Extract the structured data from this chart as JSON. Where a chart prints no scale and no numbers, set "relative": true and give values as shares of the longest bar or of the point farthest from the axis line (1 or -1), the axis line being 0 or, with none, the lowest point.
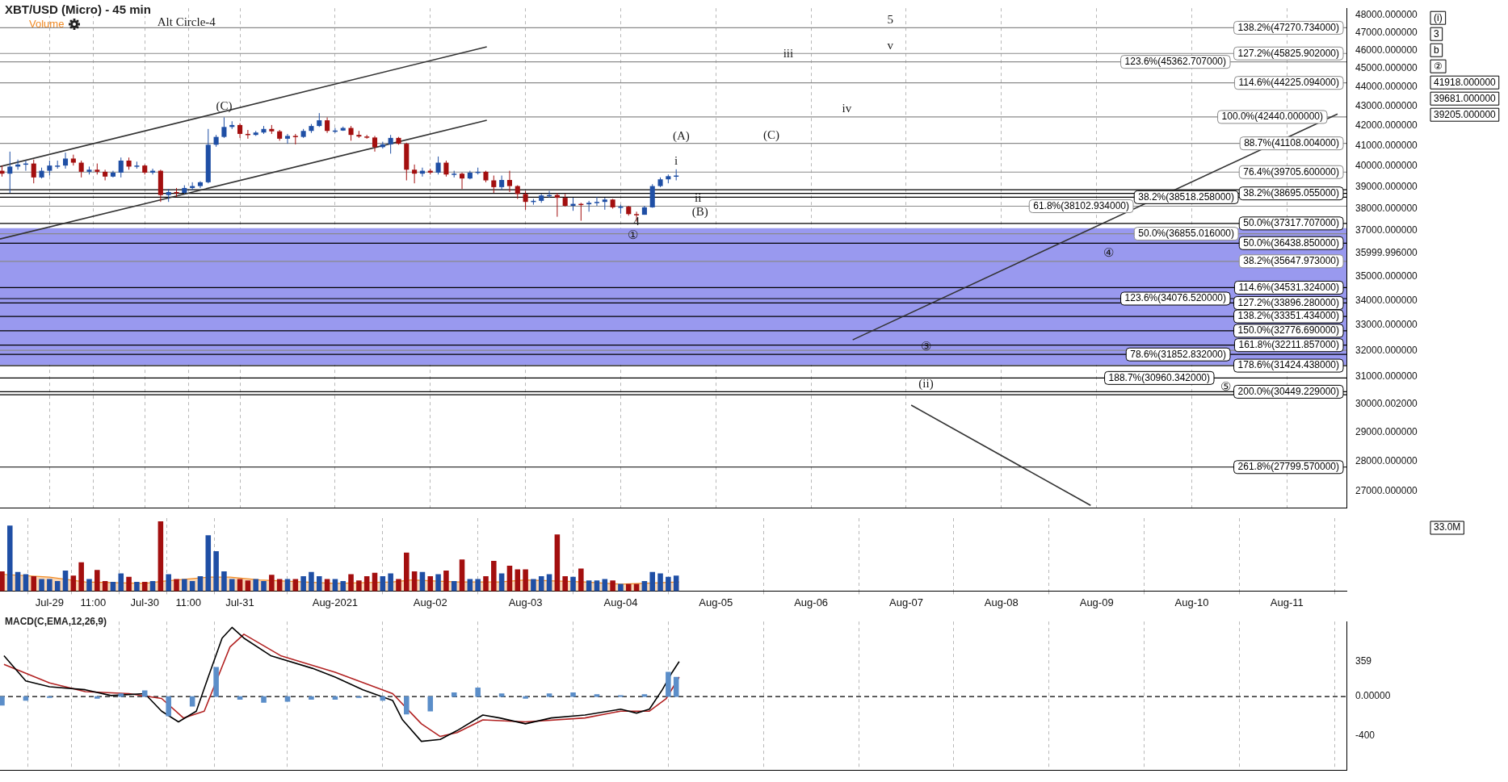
{
  "chart_data": [
    {
      "type": "candlestick",
      "title": "XBT/USD (Micro) - 45 min",
      "log": "y",
      "grid": "x",
      "tick_labels": "y",
      "xlim": [
        "2021-07-28T11:30",
        "2021-08-11T15:00"
      ],
      "xticks": [
        {
          "value": "2021-07-29",
          "label": null
        },
        {
          "value": "2021-07-29T11:00",
          "label": null
        },
        {
          "value": "2021-07-30",
          "label": null
        },
        {
          "value": "2021-07-30T11:00",
          "label": null
        },
        {
          "value": "2021-07-31",
          "label": null
        },
        {
          "value": "2021-08-01",
          "label": null
        },
        {
          "value": "2021-08-02",
          "label": null
        },
        {
          "value": "2021-08-03",
          "label": null
        },
        {
          "value": "2021-08-04",
          "label": null
        },
        {
          "value": "2021-08-05",
          "label": null
        },
        {
          "value": "2021-08-06",
          "label": null
        },
        {
          "value": "2021-08-07",
          "label": null
        },
        {
          "value": "2021-08-08",
          "label": null
        },
        {
          "value": "2021-08-09",
          "label": null
        },
        {
          "value": "2021-08-10",
          "label": null
        },
        {
          "value": "2021-08-11",
          "label": null
        }
      ],
      "ylim": [
        26450,
        48400
      ],
      "yticks": [
        {
          "value": 27000,
          "label": "27000.000000"
        },
        {
          "value": 28000,
          "label": "28000.000000"
        },
        {
          "value": 29000,
          "label": "29000.000000"
        },
        {
          "value": 30000.002,
          "label": "30000.002000"
        },
        {
          "value": 31000,
          "label": "31000.000000"
        },
        {
          "value": 32000,
          "label": "32000.000000"
        },
        {
          "value": 33000,
          "label": "33000.000000"
        },
        {
          "value": 34000,
          "label": "34000.000000"
        },
        {
          "value": 35000,
          "label": "35000.000000"
        },
        {
          "value": 35999.996,
          "label": "35999.996000"
        },
        {
          "value": 37000,
          "label": "37000.000000"
        },
        {
          "value": 38000,
          "label": "38000.000000"
        },
        {
          "value": 39000,
          "label": "39000.000000"
        },
        {
          "value": 40000,
          "label": "40000.000000"
        },
        {
          "value": 41000,
          "label": "41000.000000"
        },
        {
          "value": 42000,
          "label": "42000.000000"
        },
        {
          "value": 43000,
          "label": "43000.000000"
        },
        {
          "value": 44000,
          "label": "44000.000000"
        },
        {
          "value": 45000,
          "label": "45000.000000"
        },
        {
          "value": 46000,
          "label": "46000.000000"
        },
        {
          "value": 47000,
          "label": "47000.000000"
        },
        {
          "value": 48000,
          "label": "48000.000000"
        }
      ],
      "x": [
        "2021-07-28T12:00",
        "2021-07-28T14:00",
        "2021-07-28T16:00",
        "2021-07-28T18:00",
        "2021-07-28T20:00",
        "2021-07-28T22:00",
        "2021-07-29T00:00",
        "2021-07-29T02:00",
        "2021-07-29T04:00",
        "2021-07-29T06:00",
        "2021-07-29T08:00",
        "2021-07-29T10:00",
        "2021-07-29T12:00",
        "2021-07-29T14:00",
        "2021-07-29T16:00",
        "2021-07-29T18:00",
        "2021-07-29T20:00",
        "2021-07-29T22:00",
        "2021-07-30T00:00",
        "2021-07-30T02:00",
        "2021-07-30T04:00",
        "2021-07-30T06:00",
        "2021-07-30T08:00",
        "2021-07-30T10:00",
        "2021-07-30T12:00",
        "2021-07-30T14:00",
        "2021-07-30T16:00",
        "2021-07-30T18:00",
        "2021-07-30T20:00",
        "2021-07-30T22:00",
        "2021-07-31T00:00",
        "2021-07-31T02:00",
        "2021-07-31T04:00",
        "2021-07-31T06:00",
        "2021-07-31T08:00",
        "2021-07-31T10:00",
        "2021-07-31T12:00",
        "2021-07-31T14:00",
        "2021-07-31T16:00",
        "2021-07-31T18:00",
        "2021-07-31T20:00",
        "2021-07-31T22:00",
        "2021-08-01T00:00",
        "2021-08-01T02:00",
        "2021-08-01T04:00",
        "2021-08-01T06:00",
        "2021-08-01T08:00",
        "2021-08-01T10:00",
        "2021-08-01T12:00",
        "2021-08-01T14:00",
        "2021-08-01T16:00",
        "2021-08-01T18:00",
        "2021-08-01T20:00",
        "2021-08-01T22:00",
        "2021-08-02T00:00",
        "2021-08-02T02:00",
        "2021-08-02T04:00",
        "2021-08-02T06:00",
        "2021-08-02T08:00",
        "2021-08-02T10:00",
        "2021-08-02T12:00",
        "2021-08-02T14:00",
        "2021-08-02T16:00",
        "2021-08-02T18:00",
        "2021-08-02T20:00",
        "2021-08-02T22:00",
        "2021-08-03T00:00",
        "2021-08-03T02:00",
        "2021-08-03T04:00",
        "2021-08-03T06:00",
        "2021-08-03T08:00",
        "2021-08-03T10:00",
        "2021-08-03T12:00",
        "2021-08-03T14:00",
        "2021-08-03T16:00",
        "2021-08-03T18:00",
        "2021-08-03T20:00",
        "2021-08-03T22:00",
        "2021-08-04T00:00",
        "2021-08-04T02:00",
        "2021-08-04T04:00",
        "2021-08-04T06:00",
        "2021-08-04T08:00",
        "2021-08-04T10:00",
        "2021-08-04T12:00",
        "2021-08-04T14:00"
      ],
      "ohlc": [
        [
          39770,
          40020,
          39490,
          39630
        ],
        [
          39630,
          40700,
          38720,
          39970
        ],
        [
          39970,
          40310,
          39820,
          40070
        ],
        [
          40070,
          40260,
          39770,
          40120
        ],
        [
          40120,
          40310,
          39170,
          39450
        ],
        [
          39450,
          39920,
          39400,
          39770
        ],
        [
          39770,
          40260,
          39540,
          40020
        ],
        [
          40020,
          40260,
          39870,
          40020
        ],
        [
          40020,
          40650,
          39870,
          40360
        ],
        [
          40360,
          40550,
          40020,
          40160
        ],
        [
          40160,
          40260,
          39450,
          39720
        ],
        [
          39720,
          39970,
          39590,
          39820
        ],
        [
          39820,
          40120,
          39590,
          39720
        ],
        [
          39720,
          39820,
          39310,
          39490
        ],
        [
          39490,
          39770,
          39450,
          39680
        ],
        [
          39680,
          40410,
          39450,
          40260
        ],
        [
          40260,
          40410,
          39820,
          39970
        ],
        [
          39970,
          40210,
          39870,
          40020
        ],
        [
          40020,
          40070,
          39590,
          39680
        ],
        [
          39680,
          39870,
          39590,
          39770
        ],
        [
          39770,
          39820,
          38300,
          38620
        ],
        [
          38620,
          38900,
          38300,
          38760
        ],
        [
          38760,
          38950,
          38530,
          38720
        ],
        [
          38720,
          39080,
          38670,
          38950
        ],
        [
          38950,
          39220,
          38850,
          39040
        ],
        [
          39040,
          39270,
          38950,
          39220
        ],
        [
          39220,
          41830,
          39170,
          41040
        ],
        [
          41040,
          41530,
          40940,
          41430
        ],
        [
          41430,
          42420,
          41380,
          41930
        ],
        [
          41930,
          42220,
          41830,
          42030
        ],
        [
          42030,
          42120,
          41380,
          41580
        ],
        [
          41580,
          41780,
          41340,
          41530
        ],
        [
          41530,
          41730,
          41480,
          41650
        ],
        [
          41650,
          41980,
          41580,
          41830
        ],
        [
          41830,
          42030,
          41580,
          41710
        ],
        [
          41710,
          41780,
          41240,
          41340
        ],
        [
          41340,
          41580,
          41090,
          41480
        ],
        [
          41480,
          41580,
          41060,
          41430
        ],
        [
          41430,
          41830,
          41380,
          41730
        ],
        [
          41730,
          42080,
          41630,
          41980
        ],
        [
          41980,
          42640,
          41930,
          42270
        ],
        [
          42270,
          42420,
          41630,
          41730
        ],
        [
          41730,
          41880,
          41630,
          41750
        ],
        [
          41750,
          41950,
          41730,
          41880
        ],
        [
          41880,
          41980,
          41240,
          41530
        ],
        [
          41530,
          41730,
          41380,
          41450
        ],
        [
          41450,
          41530,
          41340,
          41400
        ],
        [
          41400,
          41480,
          40700,
          40920
        ],
        [
          40920,
          41190,
          40850,
          41060
        ],
        [
          41060,
          41530,
          40600,
          41380
        ],
        [
          41380,
          41430,
          41040,
          41090
        ],
        [
          41090,
          41140,
          39310,
          39820
        ],
        [
          39820,
          40070,
          39170,
          39630
        ],
        [
          39630,
          39920,
          39490,
          39770
        ],
        [
          39770,
          39870,
          39590,
          39680
        ],
        [
          39680,
          40460,
          39590,
          40160
        ],
        [
          40160,
          40260,
          39490,
          39590
        ],
        [
          39590,
          39770,
          39450,
          39630
        ],
        [
          39630,
          39680,
          38900,
          39400
        ],
        [
          39400,
          39770,
          39360,
          39680
        ],
        [
          39680,
          39920,
          39590,
          39720
        ],
        [
          39720,
          39770,
          39220,
          39310
        ],
        [
          39310,
          39540,
          38720,
          38990
        ],
        [
          38990,
          39540,
          38850,
          39330
        ],
        [
          39330,
          39770,
          38760,
          39040
        ],
        [
          39040,
          39080,
          38440,
          38670
        ],
        [
          38670,
          38810,
          37940,
          38300
        ],
        [
          38300,
          38440,
          38170,
          38350
        ],
        [
          38350,
          38670,
          38260,
          38600
        ],
        [
          38600,
          38810,
          38490,
          38620
        ],
        [
          38620,
          38720,
          37620,
          38490
        ],
        [
          38490,
          38670,
          38080,
          38120
        ],
        [
          38120,
          38490,
          37890,
          38210
        ],
        [
          38210,
          38260,
          37440,
          38190
        ],
        [
          38190,
          38350,
          37850,
          38260
        ],
        [
          38260,
          38530,
          38120,
          38300
        ],
        [
          38300,
          38490,
          37940,
          38410
        ],
        [
          38410,
          38440,
          37990,
          38050
        ],
        [
          38050,
          38170,
          37760,
          38080
        ],
        [
          38080,
          38120,
          37670,
          37740
        ],
        [
          37740,
          37850,
          37400,
          37710
        ],
        [
          37710,
          38120,
          37710,
          38050
        ],
        [
          38050,
          39130,
          38030,
          39040
        ],
        [
          39040,
          39450,
          38990,
          39360
        ],
        [
          39360,
          39590,
          39170,
          39510
        ],
        [
          39510,
          39840,
          39310,
          39540
        ]
      ],
      "colors": [
        "#a30f0f",
        "#1f4fa5",
        "#1f4fa5",
        "#1f4fa5",
        "#a30f0f",
        "#1f4fa5",
        "#1f4fa5",
        "#1f4fa5",
        "#1f4fa5",
        "#a30f0f",
        "#a30f0f",
        "#1f4fa5",
        "#a30f0f",
        "#a30f0f",
        "#1f4fa5",
        "#1f4fa5",
        "#a30f0f",
        "#1f4fa5",
        "#a30f0f",
        "#1f4fa5",
        "#a30f0f",
        "#1f4fa5",
        "#a30f0f",
        "#1f4fa5",
        "#1f4fa5",
        "#1f4fa5",
        "#1f4fa5",
        "#1f4fa5",
        "#1f4fa5",
        "#1f4fa5",
        "#a30f0f",
        "#a30f0f",
        "#1f4fa5",
        "#1f4fa5",
        "#a30f0f",
        "#a30f0f",
        "#1f4fa5",
        "#a30f0f",
        "#1f4fa5",
        "#1f4fa5",
        "#1f4fa5",
        "#a30f0f",
        "#1f4fa5",
        "#1f4fa5",
        "#a30f0f",
        "#a30f0f",
        "#a30f0f",
        "#a30f0f",
        "#1f4fa5",
        "#1f4fa5",
        "#a30f0f",
        "#a30f0f",
        "#a30f0f",
        "#1f4fa5",
        "#a30f0f",
        "#1f4fa5",
        "#a30f0f",
        "#1f4fa5",
        "#a30f0f",
        "#1f4fa5",
        "#1f4fa5",
        "#a30f0f",
        "#a30f0f",
        "#1f4fa5",
        "#a30f0f",
        "#a30f0f",
        "#a30f0f",
        "#1f4fa5",
        "#1f4fa5",
        "#1f4fa5",
        "#a30f0f",
        "#a30f0f",
        "#1f4fa5",
        "#a30f0f",
        "#1f4fa5",
        "#1f4fa5",
        "#1f4fa5",
        "#a30f0f",
        "#1f4fa5",
        "#a30f0f",
        "#a30f0f",
        "#1f4fa5",
        "#1f4fa5",
        "#1f4fa5",
        "#1f4fa5",
        "#1f4fa5"
      ],
      "series": [
        {
          "type": "line",
          "color": "#333333",
          "x": [
            "2021-07-28T11:30",
            "2021-08-02T14:15"
          ],
          "values": [
            39970,
            46200
          ]
        },
        {
          "type": "line",
          "color": "#333333",
          "x": [
            "2021-07-28T11:30",
            "2021-08-02T14:15"
          ],
          "values": [
            36620,
            42270
          ]
        },
        {
          "type": "line",
          "color": "#333333",
          "x": [
            "2021-08-06T10:30",
            "2021-08-11T12:45"
          ],
          "values": [
            32420,
            42590
          ]
        },
        {
          "type": "line",
          "color": "#333333",
          "x": [
            "2021-08-07T01:15",
            "2021-08-08T22:30"
          ],
          "values": [
            29960,
            26540
          ]
        }
      ],
      "bands": [
        {
          "axis": "y",
          "from": 31450,
          "to": 37100,
          "color": "#9999ef"
        }
      ],
      "ref_lines": [
        {
          "axis": "y",
          "value": 47270.734,
          "label": "138.2%(47270.734000)",
          "color": "#8a8a8a"
        },
        {
          "axis": "y",
          "value": 45825.902,
          "label": "127.2%(45825.902000)",
          "color": "#8a8a8a"
        },
        {
          "axis": "y",
          "value": 45362.707,
          "label": "123.6%(45362.707000)",
          "color": "#8a8a8a"
        },
        {
          "axis": "y",
          "value": 44225.094,
          "label": "114.6%(44225.094000)",
          "color": "#8a8a8a"
        },
        {
          "axis": "y",
          "value": 42440,
          "label": "100.0%(42440.000000)",
          "color": "#8a8a8a"
        },
        {
          "axis": "y",
          "value": 41108.004,
          "label": "88.7%(41108.004000)",
          "color": "#8a8a8a"
        },
        {
          "axis": "y",
          "value": 39705.6,
          "label": "76.4%(39705.600000)",
          "color": "#8a8a8a"
        },
        {
          "axis": "y",
          "value": 38870,
          "color": "#000000"
        },
        {
          "axis": "y",
          "value": 38695.055,
          "label": "38.2%(38695.055000)",
          "color": "#000000"
        },
        {
          "axis": "y",
          "value": 38518.258,
          "label": "38.2%(38518.258000)",
          "color": "#000000"
        },
        {
          "axis": "y",
          "value": 38102.934,
          "label": "61.8%(38102.934000)",
          "color": "#8a8a8a"
        },
        {
          "axis": "y",
          "value": 37317.707,
          "label": "50.0%(37317.707000)",
          "color": "#000000"
        },
        {
          "axis": "y",
          "value": 36855.016,
          "label": "50.0%(36855.016000)",
          "color": "#8a8a8a"
        },
        {
          "axis": "y",
          "value": 36438.85,
          "label": "50.0%(36438.850000)",
          "color": "#000000"
        },
        {
          "axis": "y",
          "value": 35647.973,
          "label": "38.2%(35647.973000)",
          "color": "#8a8a8a"
        },
        {
          "axis": "y",
          "value": 34531.324,
          "label": "114.6%(34531.324000)",
          "color": "#000000"
        },
        {
          "axis": "y",
          "value": 34076.52,
          "label": "123.6%(34076.520000)",
          "color": "#000000"
        },
        {
          "axis": "y",
          "value": 33896.28,
          "label": "127.2%(33896.280000)",
          "color": "#000000"
        },
        {
          "axis": "y",
          "value": 33351.434,
          "label": "138.2%(33351.434000)",
          "color": "#000000"
        },
        {
          "axis": "y",
          "value": 32776.69,
          "label": "150.0%(32776.690000)",
          "color": "#000000"
        },
        {
          "axis": "y",
          "value": 32211.857,
          "label": "161.8%(32211.857000)",
          "color": "#000000"
        },
        {
          "axis": "y",
          "value": 32010,
          "color": "#8a8a8a"
        },
        {
          "axis": "y",
          "value": 31852.832,
          "label": "78.6%(31852.832000)",
          "color": "#000000"
        },
        {
          "axis": "y",
          "value": 31424.438,
          "label": "178.6%(31424.438000)",
          "color": "#000000"
        },
        {
          "axis": "y",
          "value": 30960.342,
          "label": "188.7%(30960.342000)",
          "color": "#000000"
        },
        {
          "axis": "y",
          "value": 30449.229,
          "label": "200.0%(30449.229000)",
          "color": "#000000"
        },
        {
          "axis": "y",
          "value": 30340,
          "color": "#000000"
        },
        {
          "axis": "y",
          "value": 27799.57,
          "label": "261.8%(27799.570000)",
          "color": "#000000"
        }
      ],
      "annotations": [
        {
          "text": "Alt Circle-4",
          "x": "2021-07-30T10:30",
          "y": 47110
        },
        "(i)",
        "3",
        "b",
        {
          "text": "(C)",
          "x": "2021-07-30T20:00",
          "y": 42560
        },
        {
          "text": "5",
          "x": "2021-08-06T20:00",
          "y": 47270.734
        },
        {
          "text": "v",
          "x": "2021-08-06T20:00",
          "y": 45825.902
        },
        {
          "text": "iii",
          "x": "2021-08-05T18:15",
          "y": 45362.707
        },
        {
          "text": "iv",
          "x": "2021-08-06T09:00",
          "y": 42440
        },
        "②",
        {
          "text": "(C)",
          "x": "2021-08-05T14:00",
          "y": 41108.004
        },
        {
          "text": "(A)",
          "x": "2021-08-04T15:15",
          "y": 41070
        },
        {
          "text": "i",
          "x": "2021-08-04T14:00",
          "y": 39840
        },
        {
          "text": "ii",
          "x": "2021-08-04T19:30",
          "y": 38102.934
        },
        {
          "text": "(B)",
          "x": "2021-08-04T20:00",
          "y": 37480
        },
        {
          "text": "4",
          "x": "2021-08-04T04:00",
          "y": 37030
        },
        {
          "text": "①",
          "x": "2021-08-04T03:00",
          "y": 36438.85
        },
        {
          "text": "④",
          "x": "2021-08-09T03:00",
          "y": 35647.973
        },
        {
          "text": "③",
          "x": "2021-08-07T05:00",
          "y": 31852.832
        },
        {
          "text": "(ii)",
          "x": "2021-08-07T05:00",
          "y": 30449.229
        },
        {
          "text": "⑤",
          "x": "2021-08-10T08:30",
          "y": 30340
        },
        "41918.000000",
        "39681.000000",
        "39205.000000"
      ]
    },
    {
      "type": "bar",
      "title": "Volume",
      "relative": true,
      "grid": "x",
      "tick_labels": "x",
      "xlim": [
        "2021-07-28T11:30",
        "2021-08-11T15:00"
      ],
      "xticks": [
        {
          "value": "2021-07-29",
          "label": "Jul-29"
        },
        {
          "value": "2021-07-29T11:00",
          "label": "11:00"
        },
        {
          "value": "2021-07-30",
          "label": "Jul-30"
        },
        {
          "value": "2021-07-30T11:00",
          "label": "11:00"
        },
        {
          "value": "2021-07-31",
          "label": "Jul-31"
        },
        {
          "value": "2021-08-01",
          "label": "Aug-2021"
        },
        {
          "value": "2021-08-02",
          "label": "Aug-02"
        },
        {
          "value": "2021-08-03",
          "label": "Aug-03"
        },
        {
          "value": "2021-08-04",
          "label": "Aug-04"
        },
        {
          "value": "2021-08-05",
          "label": "Aug-05"
        },
        {
          "value": "2021-08-06",
          "label": "Aug-06"
        },
        {
          "value": "2021-08-07",
          "label": "Aug-07"
        },
        {
          "value": "2021-08-08",
          "label": "Aug-08"
        },
        {
          "value": "2021-08-09",
          "label": "Aug-09"
        },
        {
          "value": "2021-08-10",
          "label": "Aug-10"
        },
        {
          "value": "2021-08-11",
          "label": "Aug-11"
        }
      ],
      "series": [
        {
          "x": [
            "2021-07-28T12:00",
            "2021-07-28T14:00",
            "2021-07-28T16:00",
            "2021-07-28T18:00",
            "2021-07-28T20:00",
            "2021-07-28T22:00",
            "2021-07-29T00:00",
            "2021-07-29T02:00",
            "2021-07-29T04:00",
            "2021-07-29T06:00",
            "2021-07-29T08:00",
            "2021-07-29T10:00",
            "2021-07-29T12:00",
            "2021-07-29T14:00",
            "2021-07-29T16:00",
            "2021-07-29T18:00",
            "2021-07-29T20:00",
            "2021-07-29T22:00",
            "2021-07-30T00:00",
            "2021-07-30T02:00",
            "2021-07-30T04:00",
            "2021-07-30T06:00",
            "2021-07-30T08:00",
            "2021-07-30T10:00",
            "2021-07-30T12:00",
            "2021-07-30T14:00",
            "2021-07-30T16:00",
            "2021-07-30T18:00",
            "2021-07-30T20:00",
            "2021-07-30T22:00",
            "2021-07-31T00:00",
            "2021-07-31T02:00",
            "2021-07-31T04:00",
            "2021-07-31T06:00",
            "2021-07-31T08:00",
            "2021-07-31T10:00",
            "2021-07-31T12:00",
            "2021-07-31T14:00",
            "2021-07-31T16:00",
            "2021-07-31T18:00",
            "2021-07-31T20:00",
            "2021-07-31T22:00",
            "2021-08-01T00:00",
            "2021-08-01T02:00",
            "2021-08-01T04:00",
            "2021-08-01T06:00",
            "2021-08-01T08:00",
            "2021-08-01T10:00",
            "2021-08-01T12:00",
            "2021-08-01T14:00",
            "2021-08-01T16:00",
            "2021-08-01T18:00",
            "2021-08-01T20:00",
            "2021-08-01T22:00",
            "2021-08-02T00:00",
            "2021-08-02T02:00",
            "2021-08-02T04:00",
            "2021-08-02T06:00",
            "2021-08-02T08:00",
            "2021-08-02T10:00",
            "2021-08-02T12:00",
            "2021-08-02T14:00",
            "2021-08-02T16:00",
            "2021-08-02T18:00",
            "2021-08-02T20:00",
            "2021-08-02T22:00",
            "2021-08-03T00:00",
            "2021-08-03T02:00",
            "2021-08-03T04:00",
            "2021-08-03T06:00",
            "2021-08-03T08:00",
            "2021-08-03T10:00",
            "2021-08-03T12:00",
            "2021-08-03T14:00",
            "2021-08-03T16:00",
            "2021-08-03T18:00",
            "2021-08-03T20:00",
            "2021-08-03T22:00",
            "2021-08-04T00:00",
            "2021-08-04T02:00",
            "2021-08-04T04:00",
            "2021-08-04T06:00",
            "2021-08-04T08:00",
            "2021-08-04T10:00",
            "2021-08-04T12:00",
            "2021-08-04T14:00"
          ],
          "values": [
            0.28,
            0.94,
            0.27,
            0.24,
            0.21,
            0.17,
            0.17,
            0.14,
            0.29,
            0.22,
            0.41,
            0.17,
            0.3,
            0.14,
            0.13,
            0.25,
            0.2,
            0.13,
            0.13,
            0.14,
            1,
            0.24,
            0.17,
            0.17,
            0.14,
            0.21,
            0.8,
            0.57,
            0.28,
            0.17,
            0.17,
            0.15,
            0.17,
            0.14,
            0.23,
            0.17,
            0.17,
            0.17,
            0.21,
            0.27,
            0.21,
            0.17,
            0.17,
            0.14,
            0.24,
            0.15,
            0.21,
            0.26,
            0.21,
            0.25,
            0.17,
            0.55,
            0.28,
            0.27,
            0.21,
            0.24,
            0.29,
            0.14,
            0.45,
            0.17,
            0.17,
            0.21,
            0.43,
            0.25,
            0.36,
            0.31,
            0.31,
            0.17,
            0.21,
            0.24,
            0.81,
            0.21,
            0.2,
            0.32,
            0.15,
            0.15,
            0.17,
            0.15,
            0.1,
            0.1,
            0.1,
            0.14,
            0.27,
            0.25,
            0.2,
            0.22
          ],
          "colors": [
            "#a30f0f",
            "#1f4fa5",
            "#1f4fa5",
            "#1f4fa5",
            "#a30f0f",
            "#1f4fa5",
            "#1f4fa5",
            "#1f4fa5",
            "#1f4fa5",
            "#a30f0f",
            "#a30f0f",
            "#1f4fa5",
            "#a30f0f",
            "#a30f0f",
            "#1f4fa5",
            "#1f4fa5",
            "#a30f0f",
            "#1f4fa5",
            "#a30f0f",
            "#1f4fa5",
            "#a30f0f",
            "#1f4fa5",
            "#a30f0f",
            "#1f4fa5",
            "#1f4fa5",
            "#1f4fa5",
            "#1f4fa5",
            "#1f4fa5",
            "#1f4fa5",
            "#1f4fa5",
            "#a30f0f",
            "#a30f0f",
            "#1f4fa5",
            "#1f4fa5",
            "#a30f0f",
            "#a30f0f",
            "#1f4fa5",
            "#a30f0f",
            "#1f4fa5",
            "#1f4fa5",
            "#1f4fa5",
            "#a30f0f",
            "#1f4fa5",
            "#1f4fa5",
            "#a30f0f",
            "#a30f0f",
            "#a30f0f",
            "#a30f0f",
            "#1f4fa5",
            "#1f4fa5",
            "#a30f0f",
            "#a30f0f",
            "#a30f0f",
            "#1f4fa5",
            "#a30f0f",
            "#1f4fa5",
            "#a30f0f",
            "#1f4fa5",
            "#a30f0f",
            "#1f4fa5",
            "#1f4fa5",
            "#a30f0f",
            "#a30f0f",
            "#1f4fa5",
            "#a30f0f",
            "#a30f0f",
            "#a30f0f",
            "#1f4fa5",
            "#1f4fa5",
            "#1f4fa5",
            "#a30f0f",
            "#a30f0f",
            "#1f4fa5",
            "#a30f0f",
            "#1f4fa5",
            "#1f4fa5",
            "#1f4fa5",
            "#a30f0f",
            "#1f4fa5",
            "#a30f0f",
            "#a30f0f",
            "#1f4fa5",
            "#1f4fa5",
            "#1f4fa5",
            "#1f4fa5",
            "#1f4fa5"
          ]
        },
        {
          "type": "area",
          "color": "#f08a24",
          "x": [
            "2021-07-28T12:30",
            "2021-07-29T00:00",
            "2021-07-29T09:00",
            "2021-07-30T00:00",
            "2021-07-30T04:15",
            "2021-07-30T16:00",
            "2021-07-30T21:30",
            "2021-07-31T05:00",
            "2021-08-01T00:00",
            "2021-08-01T14:30",
            "2021-08-01T19:15",
            "2021-08-02T06:45",
            "2021-08-02T17:30",
            "2021-08-03T00:00",
            "2021-08-03T15:00",
            "2021-08-04T00:00",
            "2021-08-04T14:45"
          ],
          "values": [
            0.24,
            0.2,
            0.13,
            0.11,
            0.14,
            0.2,
            0.2,
            0.16,
            0.11,
            0.13,
            0.16,
            0.13,
            0.13,
            0.16,
            0.13,
            0.1,
            0.13
          ]
        }
      ],
      "annotations": [
        "33.0M"
      ]
    },
    {
      "type": "line",
      "title": "MACD(C,EMA,12,26,9)",
      "grid": "x",
      "tick_labels": "y",
      "xlim": [
        "2021-07-28T11:30",
        "2021-08-11T15:00"
      ],
      "xticks": [
        {
          "value": "2021-07-29",
          "label": null
        },
        {
          "value": "2021-07-29T11:00",
          "label": null
        },
        {
          "value": "2021-07-30",
          "label": null
        },
        {
          "value": "2021-07-30T11:00",
          "label": null
        },
        {
          "value": "2021-07-31",
          "label": null
        },
        {
          "value": "2021-08-01",
          "label": null
        },
        {
          "value": "2021-08-02",
          "label": null
        },
        {
          "value": "2021-08-03",
          "label": null
        },
        {
          "value": "2021-08-04",
          "label": null
        },
        {
          "value": "2021-08-05",
          "label": null
        },
        {
          "value": "2021-08-06",
          "label": null
        },
        {
          "value": "2021-08-07",
          "label": null
        },
        {
          "value": "2021-08-08",
          "label": null
        },
        {
          "value": "2021-08-09",
          "label": null
        },
        {
          "value": "2021-08-10",
          "label": null
        },
        {
          "value": "2021-08-11",
          "label": null
        }
      ],
      "ylim": [
        -760,
        770
      ],
      "yticks": [
        359,
        {
          "value": 0,
          "label": "0.00000"
        },
        -400
      ],
      "ref_lines": [
        {
          "axis": "y",
          "value": 0,
          "color": "#000000",
          "line_style": "dashed"
        }
      ],
      "series": [
        {
          "type": "bar",
          "color": "#5b8ec9",
          "x": [
            "2021-07-28T12:00",
            "2021-07-28T18:00",
            "2021-07-29T00:00",
            "2021-07-29T06:00",
            "2021-07-29T12:00",
            "2021-07-29T18:00",
            "2021-07-30T00:00",
            "2021-07-30T06:00",
            "2021-07-30T12:00",
            "2021-07-30T18:00",
            "2021-07-31T00:00",
            "2021-07-31T06:00",
            "2021-07-31T12:00",
            "2021-07-31T18:00",
            "2021-08-01T00:00",
            "2021-08-01T06:00",
            "2021-08-01T12:00",
            "2021-08-01T18:00",
            "2021-08-02T00:00",
            "2021-08-02T06:00",
            "2021-08-02T12:00",
            "2021-08-02T18:00",
            "2021-08-03T00:00",
            "2021-08-03T06:00",
            "2021-08-03T12:00",
            "2021-08-03T18:00",
            "2021-08-04T00:00",
            "2021-08-04T06:00",
            "2021-08-04T12:00",
            "2021-08-04T14:00"
          ],
          "values": [
            -90,
            -40,
            -10,
            null,
            -20,
            30,
            60,
            -200,
            -100,
            300,
            -30,
            -60,
            -50,
            -30,
            -30,
            -10,
            -40,
            -180,
            -150,
            40,
            90,
            30,
            -20,
            30,
            40,
            20,
            10,
            20,
            250,
            200
          ]
        },
        {
          "color": "#000000",
          "x": [
            "2021-07-28T12:30",
            "2021-07-28T18:00",
            "2021-07-29T00:00",
            "2021-07-29T09:00",
            "2021-07-29T15:30",
            "2021-07-30T00:00",
            "2021-07-30T04:15",
            "2021-07-30T08:30",
            "2021-07-30T13:00",
            "2021-07-30T16:00",
            "2021-07-30T19:30",
            "2021-07-30T22:00",
            "2021-07-31T01:00",
            "2021-07-31T07:45",
            "2021-07-31T18:15",
            "2021-08-01T00:00",
            "2021-08-01T07:00",
            "2021-08-01T14:30",
            "2021-08-01T17:00",
            "2021-08-01T21:45",
            "2021-08-02T02:30",
            "2021-08-02T06:45",
            "2021-08-02T13:15",
            "2021-08-02T17:30",
            "2021-08-03T00:00",
            "2021-08-03T06:30",
            "2021-08-03T15:00",
            "2021-08-04T00:00",
            "2021-08-04T04:00",
            "2021-08-04T07:15",
            "2021-08-04T10:30",
            "2021-08-04T13:00",
            "2021-08-04T14:45"
          ],
          "values": [
            420,
            160,
            100,
            70,
            10,
            30,
            -150,
            -260,
            -150,
            200,
            600,
            710,
            600,
            420,
            290,
            200,
            70,
            -40,
            -240,
            -460,
            -440,
            -350,
            -190,
            -220,
            -280,
            -220,
            -190,
            -130,
            -170,
            -130,
            70,
            250,
            359
          ]
        },
        {
          "color": "#b22222",
          "x": [
            "2021-07-28T12:30",
            "2021-07-29T00:00",
            "2021-07-29T09:00",
            "2021-07-29T20:00",
            "2021-07-30T04:15",
            "2021-07-30T09:45",
            "2021-07-30T15:00",
            "2021-07-30T21:30",
            "2021-07-31T01:00",
            "2021-07-31T10:15",
            "2021-08-01T00:00",
            "2021-08-01T14:30",
            "2021-08-01T21:45",
            "2021-08-02T02:30",
            "2021-08-02T06:45",
            "2021-08-02T13:15",
            "2021-08-03T00:00",
            "2021-08-03T15:00",
            "2021-08-04T00:00",
            "2021-08-04T07:15",
            "2021-08-04T11:30",
            "2021-08-04T14:45"
          ],
          "values": [
            330,
            140,
            50,
            30,
            -20,
            -220,
            -150,
            510,
            640,
            420,
            250,
            30,
            -280,
            -410,
            -370,
            -240,
            -260,
            -220,
            -150,
            -150,
            -20,
            200
          ]
        }
      ]
    }
  ]
}
